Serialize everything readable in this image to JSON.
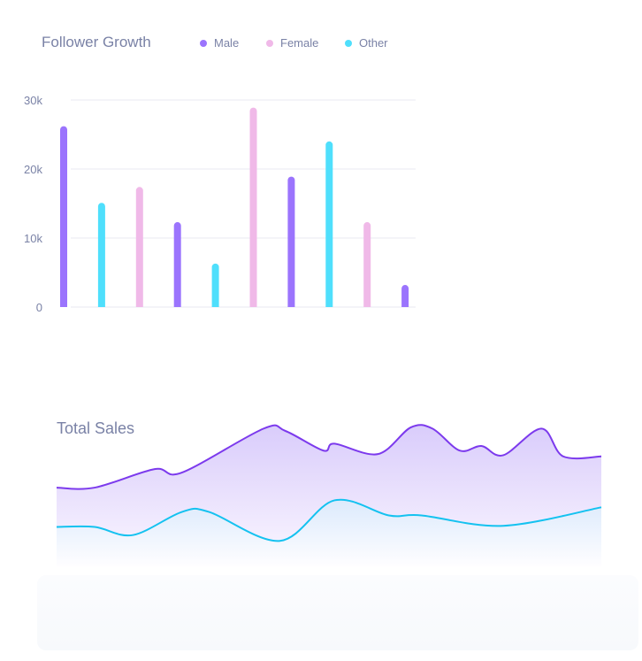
{
  "chart_data": [
    {
      "type": "bar",
      "title": "Follower Growth",
      "legend": [
        {
          "name": "Male",
          "color": "#9b74fd"
        },
        {
          "name": "Female",
          "color": "#f0b9e8"
        },
        {
          "name": "Other",
          "color": "#4fdffc"
        }
      ],
      "yticks": [
        "0",
        "10k",
        "20k",
        "30k"
      ],
      "ylim": [
        0,
        30000
      ],
      "grid": true,
      "bars": [
        {
          "series": "Male",
          "value": 26200
        },
        {
          "series": "Other",
          "value": 15100
        },
        {
          "series": "Female",
          "value": 17400
        },
        {
          "series": "Male",
          "value": 12300
        },
        {
          "series": "Other",
          "value": 6300
        },
        {
          "series": "Female",
          "value": 28900
        },
        {
          "series": "Male",
          "value": 18900
        },
        {
          "series": "Other",
          "value": 24000
        },
        {
          "series": "Female",
          "value": 12300
        },
        {
          "series": "Male",
          "value": 3200
        }
      ]
    },
    {
      "type": "area",
      "title": "Total Sales",
      "ylim": [
        0,
        130
      ],
      "xlim": [
        0,
        100
      ],
      "series": [
        {
          "color": "#7c3aed",
          "fill": "#d9ccfb",
          "x": [
            0,
            7,
            18,
            23,
            38,
            42,
            49,
            51,
            59,
            65,
            69,
            74,
            78,
            82,
            89,
            93,
            100
          ],
          "y": [
            68,
            68,
            84,
            81,
            119,
            117,
            100,
            106,
            97,
            120,
            119,
            100,
            104,
            96,
            119,
            95,
            95
          ]
        },
        {
          "color": "#14c2f0",
          "fill": "#d8ecfc",
          "x": [
            0,
            7,
            14,
            23,
            28,
            41,
            51,
            61,
            67,
            82,
            100
          ],
          "y": [
            34,
            34,
            27,
            47,
            47,
            22,
            57,
            44,
            44,
            35,
            51
          ]
        }
      ]
    }
  ]
}
